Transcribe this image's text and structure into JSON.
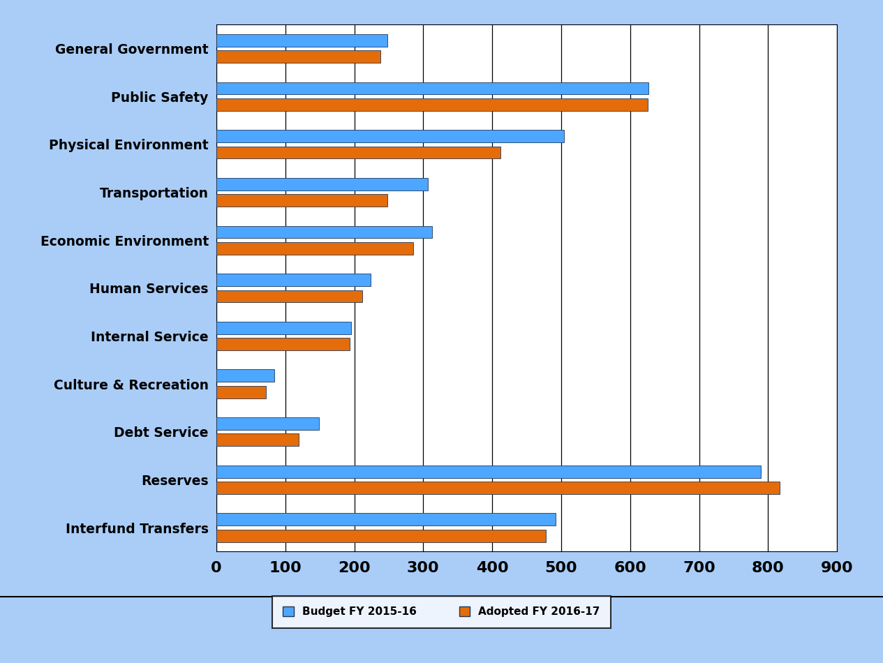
{
  "chart_data": {
    "type": "bar",
    "orientation": "horizontal",
    "categories": [
      "General Government",
      "Public Safety",
      "Physical Environment",
      "Transportation",
      "Economic Environment",
      "Human Services",
      "Internal Service",
      "Culture & Recreation",
      "Debt Service",
      "Reserves",
      "Interfund Transfers"
    ],
    "series": [
      {
        "name": "Budget FY 2015-16",
        "color": "#4da6ff",
        "values": [
          248,
          627,
          504,
          307,
          313,
          224,
          195,
          84,
          149,
          789,
          492
        ]
      },
      {
        "name": "Adopted FY 2016-17",
        "color": "#e46c0a",
        "values": [
          238,
          626,
          412,
          248,
          285,
          212,
          193,
          72,
          119,
          817,
          478
        ]
      }
    ],
    "xlim": [
      0,
      900
    ],
    "xticks": [
      0,
      100,
      200,
      300,
      400,
      500,
      600,
      700,
      800,
      900
    ],
    "grid": true,
    "legend": "lower center"
  }
}
